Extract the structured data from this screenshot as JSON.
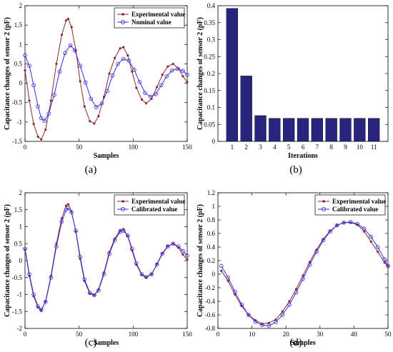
{
  "colors": {
    "experimental": "#8B2A2A",
    "second": "#3A2BE0",
    "bar": "#27257E",
    "axis": "#000000"
  },
  "chart_data": [
    {
      "id": "a",
      "type": "line",
      "caption": "(a)",
      "xlabel": "Samples",
      "ylabel": "Capacitance changes of sensor 2 (pF)",
      "xlim": [
        0,
        150
      ],
      "ylim": [
        -1.5,
        2
      ],
      "xticks": [
        "0",
        "50",
        "100",
        "150"
      ],
      "yticks": [
        "-1.5",
        "-1",
        "-0.5",
        "0",
        "0.5",
        "1",
        "1.5",
        "2"
      ],
      "legend_position": "top-right",
      "series": [
        {
          "name": "Experimental value",
          "marker": "dot",
          "color_key": "experimental",
          "points": [
            [
              0,
              0.33
            ],
            [
              4,
              -0.45
            ],
            [
              8,
              -1.05
            ],
            [
              12,
              -1.38
            ],
            [
              15,
              -1.45
            ],
            [
              19,
              -1.2
            ],
            [
              24,
              -0.45
            ],
            [
              29,
              0.5
            ],
            [
              34,
              1.25
            ],
            [
              38,
              1.62
            ],
            [
              40,
              1.66
            ],
            [
              43,
              1.45
            ],
            [
              47,
              0.85
            ],
            [
              51,
              0.05
            ],
            [
              55,
              -0.6
            ],
            [
              60,
              -0.98
            ],
            [
              64,
              -1.04
            ],
            [
              68,
              -0.85
            ],
            [
              73,
              -0.35
            ],
            [
              78,
              0.25
            ],
            [
              83,
              0.65
            ],
            [
              88,
              0.9
            ],
            [
              91,
              0.93
            ],
            [
              95,
              0.72
            ],
            [
              99,
              0.3
            ],
            [
              103,
              -0.12
            ],
            [
              108,
              -0.42
            ],
            [
              112,
              -0.52
            ],
            [
              117,
              -0.4
            ],
            [
              122,
              -0.1
            ],
            [
              127,
              0.22
            ],
            [
              132,
              0.43
            ],
            [
              137,
              0.5
            ],
            [
              142,
              0.38
            ],
            [
              146,
              0.18
            ],
            [
              150,
              0.03
            ]
          ]
        },
        {
          "name": "Nominal value",
          "marker": "circle",
          "color_key": "second",
          "points": [
            [
              0,
              0.72
            ],
            [
              4,
              0.45
            ],
            [
              8,
              -0.05
            ],
            [
              12,
              -0.6
            ],
            [
              15,
              -0.9
            ],
            [
              18,
              -0.97
            ],
            [
              22,
              -0.78
            ],
            [
              27,
              -0.3
            ],
            [
              32,
              0.3
            ],
            [
              37,
              0.78
            ],
            [
              42,
              0.98
            ],
            [
              46,
              0.85
            ],
            [
              51,
              0.45
            ],
            [
              56,
              0.02
            ],
            [
              61,
              -0.4
            ],
            [
              66,
              -0.62
            ],
            [
              71,
              -0.52
            ],
            [
              76,
              -0.2
            ],
            [
              81,
              0.2
            ],
            [
              86,
              0.5
            ],
            [
              91,
              0.63
            ],
            [
              96,
              0.58
            ],
            [
              101,
              0.35
            ],
            [
              106,
              0.03
            ],
            [
              111,
              -0.25
            ],
            [
              116,
              -0.35
            ],
            [
              121,
              -0.28
            ],
            [
              126,
              -0.05
            ],
            [
              131,
              0.18
            ],
            [
              136,
              0.33
            ],
            [
              141,
              0.37
            ],
            [
              146,
              0.32
            ],
            [
              150,
              0.22
            ]
          ]
        }
      ]
    },
    {
      "id": "b",
      "type": "bar",
      "caption": "(b)",
      "xlabel": "Iterations",
      "ylabel": "Capacitance changes of sensor 2 (pF)",
      "ylim": [
        0,
        0.4
      ],
      "yticks": [
        "0",
        "0.05",
        "0.1",
        "0.15",
        "0.2",
        "0.25",
        "0.3",
        "0.35",
        "0.4"
      ],
      "categories": [
        "1",
        "2",
        "3",
        "4",
        "5",
        "6",
        "7",
        "8",
        "9",
        "10",
        "11"
      ],
      "values": [
        0.392,
        0.193,
        0.076,
        0.068,
        0.068,
        0.068,
        0.068,
        0.068,
        0.068,
        0.068,
        0.068
      ]
    },
    {
      "id": "c",
      "type": "line",
      "caption": "(c)",
      "xlabel": "Samples",
      "ylabel": "Capacitance changes of sensor 2 (pF)",
      "xlim": [
        0,
        150
      ],
      "ylim": [
        -2,
        2
      ],
      "xticks": [
        "0",
        "50",
        "100",
        "150"
      ],
      "yticks": [
        "-2",
        "-1.5",
        "-1",
        "-0.5",
        "0",
        "0.5",
        "1",
        "1.5",
        "2"
      ],
      "legend_position": "top-right",
      "series": [
        {
          "name": "Experimental value",
          "marker": "dot",
          "color_key": "experimental",
          "points": [
            [
              0,
              0.33
            ],
            [
              4,
              -0.45
            ],
            [
              8,
              -1.05
            ],
            [
              12,
              -1.38
            ],
            [
              15,
              -1.48
            ],
            [
              19,
              -1.2
            ],
            [
              24,
              -0.45
            ],
            [
              29,
              0.5
            ],
            [
              34,
              1.25
            ],
            [
              38,
              1.62
            ],
            [
              40,
              1.66
            ],
            [
              43,
              1.45
            ],
            [
              47,
              0.85
            ],
            [
              51,
              0.05
            ],
            [
              55,
              -0.6
            ],
            [
              60,
              -0.98
            ],
            [
              64,
              -1.02
            ],
            [
              68,
              -0.85
            ],
            [
              73,
              -0.35
            ],
            [
              78,
              0.25
            ],
            [
              83,
              0.65
            ],
            [
              88,
              0.9
            ],
            [
              91,
              0.93
            ],
            [
              95,
              0.72
            ],
            [
              99,
              0.3
            ],
            [
              103,
              -0.12
            ],
            [
              108,
              -0.42
            ],
            [
              112,
              -0.5
            ],
            [
              117,
              -0.4
            ],
            [
              122,
              -0.1
            ],
            [
              127,
              0.22
            ],
            [
              132,
              0.43
            ],
            [
              137,
              0.5
            ],
            [
              142,
              0.38
            ],
            [
              146,
              0.18
            ],
            [
              150,
              0.03
            ]
          ]
        },
        {
          "name": "Calibrated value",
          "marker": "circle",
          "color_key": "second",
          "points": [
            [
              0,
              0.35
            ],
            [
              4,
              -0.4
            ],
            [
              8,
              -1.0
            ],
            [
              12,
              -1.35
            ],
            [
              15,
              -1.45
            ],
            [
              19,
              -1.22
            ],
            [
              24,
              -0.5
            ],
            [
              29,
              0.42
            ],
            [
              34,
              1.15
            ],
            [
              38,
              1.5
            ],
            [
              40,
              1.55
            ],
            [
              43,
              1.42
            ],
            [
              47,
              0.88
            ],
            [
              51,
              0.12
            ],
            [
              55,
              -0.55
            ],
            [
              60,
              -0.95
            ],
            [
              64,
              -1.02
            ],
            [
              68,
              -0.88
            ],
            [
              73,
              -0.4
            ],
            [
              78,
              0.2
            ],
            [
              83,
              0.6
            ],
            [
              88,
              0.85
            ],
            [
              91,
              0.88
            ],
            [
              95,
              0.74
            ],
            [
              99,
              0.35
            ],
            [
              103,
              -0.08
            ],
            [
              108,
              -0.4
            ],
            [
              112,
              -0.48
            ],
            [
              117,
              -0.4
            ],
            [
              122,
              -0.12
            ],
            [
              127,
              0.2
            ],
            [
              132,
              0.42
            ],
            [
              137,
              0.5
            ],
            [
              142,
              0.42
            ],
            [
              146,
              0.28
            ],
            [
              150,
              0.15
            ]
          ]
        }
      ]
    },
    {
      "id": "d",
      "type": "line",
      "caption": "(d)",
      "xlabel": "Samples",
      "ylabel": "Capacitance changes of sensor 2 (pF)",
      "xlim": [
        0,
        50
      ],
      "ylim": [
        -0.8,
        1.2
      ],
      "xticks": [
        "0",
        "10",
        "20",
        "30",
        "40",
        "50"
      ],
      "yticks": [
        "-0.8",
        "-0.6",
        "-0.4",
        "-0.2",
        "0",
        "0.2",
        "0.4",
        "0.6",
        "0.8",
        "1",
        "1.2"
      ],
      "legend_position": "top-right",
      "series": [
        {
          "name": "Experimental value",
          "marker": "dot",
          "color_key": "experimental",
          "points": [
            [
              1,
              0.05
            ],
            [
              3,
              -0.1
            ],
            [
              5,
              -0.3
            ],
            [
              7,
              -0.47
            ],
            [
              9,
              -0.6
            ],
            [
              11,
              -0.68
            ],
            [
              13,
              -0.73
            ],
            [
              15,
              -0.72
            ],
            [
              17,
              -0.67
            ],
            [
              19,
              -0.55
            ],
            [
              21,
              -0.4
            ],
            [
              23,
              -0.22
            ],
            [
              25,
              -0.02
            ],
            [
              27,
              0.18
            ],
            [
              29,
              0.36
            ],
            [
              31,
              0.52
            ],
            [
              33,
              0.64
            ],
            [
              35,
              0.72
            ],
            [
              37,
              0.76
            ],
            [
              39,
              0.76
            ],
            [
              41,
              0.73
            ],
            [
              43,
              0.63
            ],
            [
              45,
              0.48
            ],
            [
              47,
              0.33
            ],
            [
              49,
              0.17
            ],
            [
              50,
              0.12
            ]
          ]
        },
        {
          "name": "Calibrated value",
          "marker": "circle",
          "color_key": "second",
          "points": [
            [
              1,
              0.12
            ],
            [
              3,
              -0.05
            ],
            [
              5,
              -0.26
            ],
            [
              7,
              -0.45
            ],
            [
              9,
              -0.6
            ],
            [
              11,
              -0.7
            ],
            [
              13,
              -0.75
            ],
            [
              15,
              -0.76
            ],
            [
              17,
              -0.71
            ],
            [
              19,
              -0.6
            ],
            [
              21,
              -0.45
            ],
            [
              23,
              -0.27
            ],
            [
              25,
              -0.07
            ],
            [
              27,
              0.14
            ],
            [
              29,
              0.33
            ],
            [
              31,
              0.5
            ],
            [
              33,
              0.63
            ],
            [
              35,
              0.72
            ],
            [
              37,
              0.76
            ],
            [
              39,
              0.77
            ],
            [
              41,
              0.74
            ],
            [
              43,
              0.67
            ],
            [
              45,
              0.55
            ],
            [
              47,
              0.4
            ],
            [
              49,
              0.22
            ],
            [
              50,
              0.12
            ]
          ]
        }
      ]
    }
  ]
}
